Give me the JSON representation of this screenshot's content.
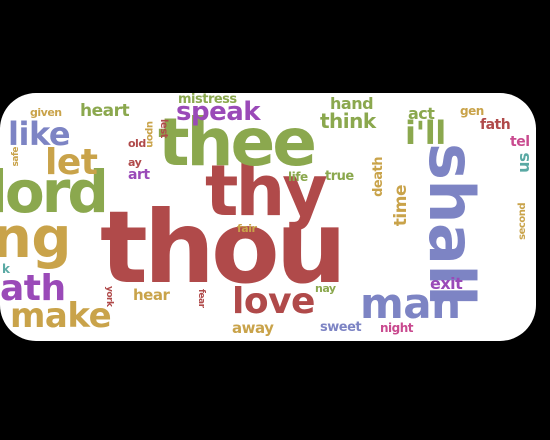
{
  "colors": {
    "background": "#000000",
    "canvas": "#ffffff",
    "red": "#b04a4a",
    "green": "#8ba84e",
    "blue": "#7d84c4",
    "purple": "#9a4ab8",
    "orange": "#c9a34a",
    "teal": "#5aa9a4",
    "pink": "#c94a8f"
  },
  "words": {
    "thou": "thou",
    "thy": "thy",
    "thee": "thee",
    "lord": "lord",
    "shall": "shall",
    "love": "love",
    "man": "man",
    "make": "make",
    "let": "let",
    "like": "like",
    "speak": "speak",
    "i_ll": "i'll",
    "think": "think",
    "hand": "hand",
    "heart": "heart",
    "mistress": "mistress",
    "time": "time",
    "death_v": "death",
    "ng": "ng",
    "ath": "ath",
    "act": "act",
    "exit": "exit",
    "hear": "hear",
    "away": "away",
    "sweet": "sweet",
    "night": "night",
    "nay": "nay",
    "life": "life",
    "true": "true",
    "fair": "fair",
    "art": "art",
    "ay": "ay",
    "old": "old",
    "upon": "upon",
    "lest": "lest",
    "given": "given",
    "gentle": "gen",
    "father": "fath",
    "tell": "tel",
    "second": "second",
    "york": "york",
    "fear": "fear",
    "k": "k",
    "us": "us",
    "safe": "safe"
  }
}
